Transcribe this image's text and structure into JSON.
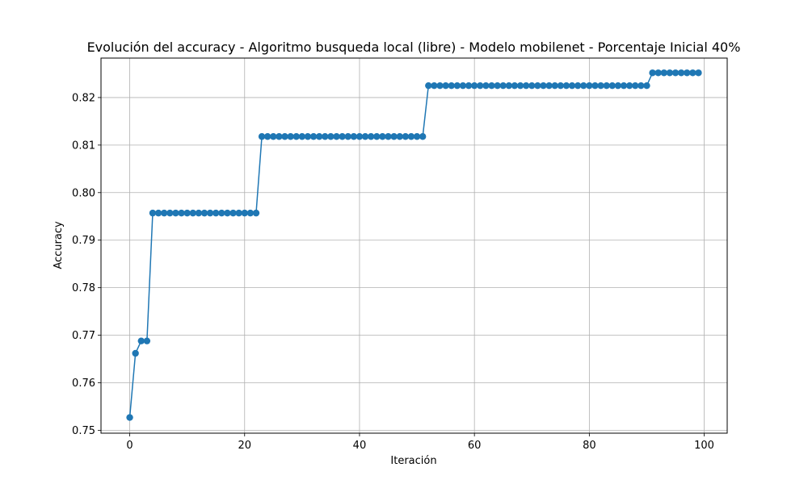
{
  "chart_data": {
    "type": "line",
    "title": "Evolución del accuracy - Algoritmo busqueda local (libre) - Modelo mobilenet - Porcentaje Inicial 40%",
    "xlabel": "Iteración",
    "ylabel": "Accuracy",
    "xlim": [
      -5,
      104
    ],
    "ylim": [
      0.7494,
      0.8283
    ],
    "xticks": [
      0,
      20,
      40,
      60,
      80,
      100
    ],
    "xtick_labels": [
      "0",
      "20",
      "40",
      "60",
      "80",
      "100"
    ],
    "yticks": [
      0.75,
      0.76,
      0.77,
      0.78,
      0.79,
      0.8,
      0.81,
      0.82
    ],
    "ytick_labels": [
      "0.75",
      "0.76",
      "0.77",
      "0.78",
      "0.79",
      "0.80",
      "0.81",
      "0.82"
    ],
    "grid": true,
    "marker": "circle",
    "color": "#1f77b4",
    "series": [
      {
        "x": [
          0,
          1,
          2,
          3,
          4,
          5,
          6,
          7,
          8,
          9,
          10,
          11,
          12,
          13,
          14,
          15,
          16,
          17,
          18,
          19,
          20,
          21,
          22,
          23,
          24,
          25,
          26,
          27,
          28,
          29,
          30,
          31,
          32,
          33,
          34,
          35,
          36,
          37,
          38,
          39,
          40,
          41,
          42,
          43,
          44,
          45,
          46,
          47,
          48,
          49,
          50,
          51,
          52,
          53,
          54,
          55,
          56,
          57,
          58,
          59,
          60,
          61,
          62,
          63,
          64,
          65,
          66,
          67,
          68,
          69,
          70,
          71,
          72,
          73,
          74,
          75,
          76,
          77,
          78,
          79,
          80,
          81,
          82,
          83,
          84,
          85,
          86,
          87,
          88,
          89,
          90,
          91,
          92,
          93,
          94,
          95,
          96,
          97,
          98,
          99
        ],
        "y": [
          0.7527,
          0.7662,
          0.7688,
          0.7688,
          0.7957,
          0.7957,
          0.7957,
          0.7957,
          0.7957,
          0.7957,
          0.7957,
          0.7957,
          0.7957,
          0.7957,
          0.7957,
          0.7957,
          0.7957,
          0.7957,
          0.7957,
          0.7957,
          0.7957,
          0.7957,
          0.7957,
          0.8118,
          0.8118,
          0.8118,
          0.8118,
          0.8118,
          0.8118,
          0.8118,
          0.8118,
          0.8118,
          0.8118,
          0.8118,
          0.8118,
          0.8118,
          0.8118,
          0.8118,
          0.8118,
          0.8118,
          0.8118,
          0.8118,
          0.8118,
          0.8118,
          0.8118,
          0.8118,
          0.8118,
          0.8118,
          0.8118,
          0.8118,
          0.8118,
          0.8118,
          0.8225,
          0.8225,
          0.8225,
          0.8225,
          0.8225,
          0.8225,
          0.8225,
          0.8225,
          0.8225,
          0.8225,
          0.8225,
          0.8225,
          0.8225,
          0.8225,
          0.8225,
          0.8225,
          0.8225,
          0.8225,
          0.8225,
          0.8225,
          0.8225,
          0.8225,
          0.8225,
          0.8225,
          0.8225,
          0.8225,
          0.8225,
          0.8225,
          0.8225,
          0.8225,
          0.8225,
          0.8225,
          0.8225,
          0.8225,
          0.8225,
          0.8225,
          0.8225,
          0.8225,
          0.8225,
          0.8252,
          0.8252,
          0.8252,
          0.8252,
          0.8252,
          0.8252,
          0.8252,
          0.8252,
          0.8252
        ]
      }
    ]
  }
}
